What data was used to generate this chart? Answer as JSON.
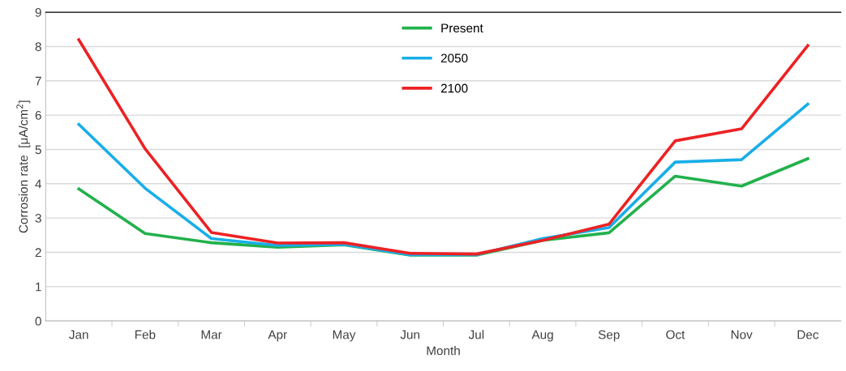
{
  "chart_data": {
    "type": "line",
    "xlabel": "Month",
    "ylabel": "Corrosion rate  [μA/cm$^{2}$]",
    "categories": [
      "Jan",
      "Feb",
      "Mar",
      "Apr",
      "May",
      "Jun",
      "Jul",
      "Aug",
      "Sep",
      "Oct",
      "Nov",
      "Dec"
    ],
    "series": [
      {
        "name": "Present",
        "color": "#22b14c",
        "values": [
          3.85,
          2.55,
          2.28,
          2.15,
          2.22,
          1.92,
          1.92,
          2.35,
          2.57,
          4.22,
          3.93,
          4.73
        ]
      },
      {
        "name": "2050",
        "color": "#19aee8",
        "values": [
          5.73,
          3.87,
          2.4,
          2.2,
          2.23,
          1.93,
          1.93,
          2.4,
          2.72,
          4.63,
          4.7,
          6.32
        ]
      },
      {
        "name": "2100",
        "color": "#ec2224",
        "values": [
          8.2,
          5.02,
          2.58,
          2.27,
          2.28,
          1.97,
          1.95,
          2.35,
          2.82,
          5.25,
          5.6,
          8.03
        ]
      }
    ],
    "ylim": [
      0,
      9
    ],
    "yticks": [
      0,
      1,
      2,
      3,
      4,
      5,
      6,
      7,
      8,
      9
    ],
    "grid": "y",
    "legend": "top",
    "marker": "none",
    "line_style": "solid"
  }
}
